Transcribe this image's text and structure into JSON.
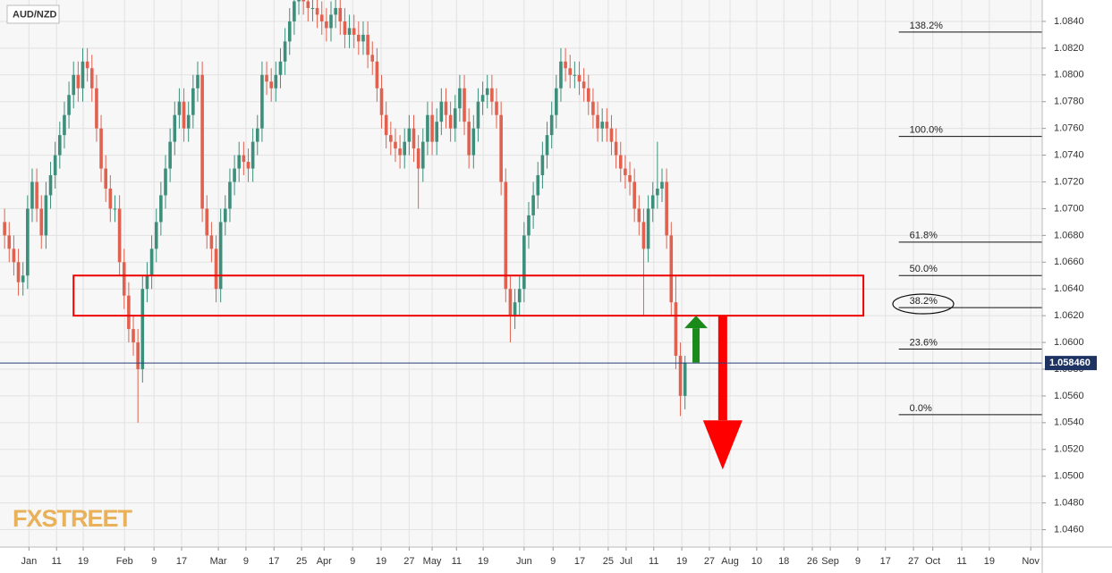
{
  "chart_data": {
    "type": "candlestick",
    "title": "AUD/NZD",
    "logo": "FXSTREET",
    "up_color": "#3d8f7b",
    "down_color": "#e0614f",
    "grid": true,
    "ylim": [
      1.0447,
      1.0856
    ],
    "xlim": [
      -1,
      225.7
    ],
    "yticks": [
      {
        "value": 1.046,
        "label": "1.0460"
      },
      {
        "value": 1.048,
        "label": "1.0480"
      },
      {
        "value": 1.05,
        "label": "1.0500"
      },
      {
        "value": 1.052,
        "label": "1.0520"
      },
      {
        "value": 1.054,
        "label": "1.0540"
      },
      {
        "value": 1.056,
        "label": "1.0560"
      },
      {
        "value": 1.058,
        "label": "1.0580"
      },
      {
        "value": 1.06,
        "label": "1.0600"
      },
      {
        "value": 1.062,
        "label": "1.0620"
      },
      {
        "value": 1.064,
        "label": "1.0640"
      },
      {
        "value": 1.066,
        "label": "1.0660"
      },
      {
        "value": 1.068,
        "label": "1.0680"
      },
      {
        "value": 1.07,
        "label": "1.0700"
      },
      {
        "value": 1.072,
        "label": "1.0720"
      },
      {
        "value": 1.074,
        "label": "1.0740"
      },
      {
        "value": 1.076,
        "label": "1.0760"
      },
      {
        "value": 1.078,
        "label": "1.0780"
      },
      {
        "value": 1.08,
        "label": "1.0800"
      },
      {
        "value": 1.082,
        "label": "1.0820"
      },
      {
        "value": 1.084,
        "label": "1.0840"
      }
    ],
    "xticks": [
      {
        "value": 5.3,
        "label": "Jan"
      },
      {
        "value": 11.3,
        "label": "11"
      },
      {
        "value": 17.1,
        "label": "19"
      },
      {
        "value": 26.1,
        "label": "Feb"
      },
      {
        "value": 32.5,
        "label": "9"
      },
      {
        "value": 38.5,
        "label": "17"
      },
      {
        "value": 46.5,
        "label": "Mar"
      },
      {
        "value": 52.5,
        "label": "9"
      },
      {
        "value": 58.6,
        "label": "17"
      },
      {
        "value": 64.6,
        "label": "25"
      },
      {
        "value": 69.5,
        "label": "Apr"
      },
      {
        "value": 75.7,
        "label": "9"
      },
      {
        "value": 81.9,
        "label": "19"
      },
      {
        "value": 88,
        "label": "27"
      },
      {
        "value": 93,
        "label": "May"
      },
      {
        "value": 98.3,
        "label": "11"
      },
      {
        "value": 104.1,
        "label": "19"
      },
      {
        "value": 113,
        "label": "Jun"
      },
      {
        "value": 119.3,
        "label": "9"
      },
      {
        "value": 125.1,
        "label": "17"
      },
      {
        "value": 131.3,
        "label": "25"
      },
      {
        "value": 135.2,
        "label": "Jul"
      },
      {
        "value": 141.2,
        "label": "11"
      },
      {
        "value": 147.3,
        "label": "19"
      },
      {
        "value": 153.3,
        "label": "27"
      },
      {
        "value": 157.8,
        "label": "Aug"
      },
      {
        "value": 163.6,
        "label": "10"
      },
      {
        "value": 169.5,
        "label": "18"
      },
      {
        "value": 175.7,
        "label": "26"
      },
      {
        "value": 179.6,
        "label": "Sep"
      },
      {
        "value": 185.6,
        "label": "9"
      },
      {
        "value": 191.6,
        "label": "17"
      },
      {
        "value": 197.7,
        "label": "27"
      },
      {
        "value": 201.9,
        "label": "Oct"
      },
      {
        "value": 208.2,
        "label": "11"
      },
      {
        "value": 214.2,
        "label": "19"
      },
      {
        "value": 223.2,
        "label": "Nov"
      }
    ],
    "last_price": {
      "value": 1.05846,
      "label": "1.058460"
    },
    "fib_levels": [
      {
        "name": "138.2%",
        "price": 1.0832
      },
      {
        "name": "100.0%",
        "price": 1.0754
      },
      {
        "name": "61.8%",
        "price": 1.0675
      },
      {
        "name": "50.0%",
        "price": 1.065
      },
      {
        "name": "38.2%",
        "price": 1.0626
      },
      {
        "name": "23.6%",
        "price": 1.0595
      },
      {
        "name": "0.0%",
        "price": 1.0546
      }
    ],
    "fib_xlim": [
      194.5,
      225.7
    ],
    "zone": {
      "xlim": [
        15,
        186.8
      ],
      "ylim": [
        1.062,
        1.065
      ]
    },
    "arrows": [
      {
        "x": 150.4,
        "from": 1.0585,
        "to": 1.062,
        "color": "#1a8a1a"
      },
      {
        "x": 156.2,
        "from": 1.062,
        "to": 1.0505,
        "color": "#ff0000"
      }
    ],
    "ohlc": [
      [
        1.069,
        1.07,
        1.067,
        1.068
      ],
      [
        1.068,
        1.069,
        1.066,
        1.067
      ],
      [
        1.067,
        1.068,
        1.065,
        1.066
      ],
      [
        1.066,
        1.067,
        1.0635,
        1.0645
      ],
      [
        1.0645,
        1.066,
        1.0635,
        1.065
      ],
      [
        1.065,
        1.071,
        1.064,
        1.07
      ],
      [
        1.07,
        1.073,
        1.069,
        1.072
      ],
      [
        1.072,
        1.073,
        1.069,
        1.07
      ],
      [
        1.07,
        1.071,
        1.067,
        1.068
      ],
      [
        1.068,
        1.072,
        1.067,
        1.071
      ],
      [
        1.071,
        1.0735,
        1.07,
        1.0725
      ],
      [
        1.0725,
        1.075,
        1.0715,
        1.074
      ],
      [
        1.074,
        1.0765,
        1.073,
        1.0755
      ],
      [
        1.0755,
        1.078,
        1.0745,
        1.077
      ],
      [
        1.077,
        1.0795,
        1.076,
        1.0785
      ],
      [
        1.0785,
        1.081,
        1.0775,
        1.08
      ],
      [
        1.08,
        1.081,
        1.078,
        1.079
      ],
      [
        1.079,
        1.082,
        1.078,
        1.081
      ],
      [
        1.081,
        1.082,
        1.0795,
        1.0805
      ],
      [
        1.0805,
        1.0815,
        1.078,
        1.079
      ],
      [
        1.079,
        1.08,
        1.075,
        1.076
      ],
      [
        1.076,
        1.077,
        1.072,
        1.073
      ],
      [
        1.073,
        1.074,
        1.0705,
        1.0715
      ],
      [
        1.0715,
        1.0725,
        1.069,
        1.07
      ],
      [
        1.07,
        1.071,
        1.069,
        1.07
      ],
      [
        1.07,
        1.071,
        1.065,
        1.066
      ],
      [
        1.066,
        1.067,
        1.0625,
        1.0635
      ],
      [
        1.0635,
        1.0645,
        1.06,
        1.061
      ],
      [
        1.061,
        1.062,
        1.059,
        1.06
      ],
      [
        1.06,
        1.061,
        1.054,
        1.058
      ],
      [
        1.058,
        1.065,
        1.057,
        1.064
      ],
      [
        1.064,
        1.066,
        1.063,
        1.065
      ],
      [
        1.065,
        1.068,
        1.064,
        1.067
      ],
      [
        1.067,
        1.07,
        1.066,
        1.069
      ],
      [
        1.069,
        1.072,
        1.068,
        1.071
      ],
      [
        1.071,
        1.074,
        1.07,
        1.073
      ],
      [
        1.073,
        1.076,
        1.072,
        1.075
      ],
      [
        1.075,
        1.078,
        1.074,
        1.077
      ],
      [
        1.077,
        1.079,
        1.076,
        1.078
      ],
      [
        1.078,
        1.079,
        1.075,
        1.076
      ],
      [
        1.076,
        1.078,
        1.075,
        1.077
      ],
      [
        1.077,
        1.08,
        1.076,
        1.079
      ],
      [
        1.079,
        1.081,
        1.078,
        1.08
      ],
      [
        1.08,
        1.081,
        1.069,
        1.07
      ],
      [
        1.07,
        1.071,
        1.067,
        1.068
      ],
      [
        1.068,
        1.069,
        1.066,
        1.067
      ],
      [
        1.067,
        1.068,
        1.063,
        1.064
      ],
      [
        1.064,
        1.07,
        1.063,
        1.069
      ],
      [
        1.069,
        1.071,
        1.068,
        1.07
      ],
      [
        1.07,
        1.073,
        1.069,
        1.072
      ],
      [
        1.072,
        1.074,
        1.071,
        1.073
      ],
      [
        1.073,
        1.075,
        1.072,
        1.074
      ],
      [
        1.074,
        1.075,
        1.0725,
        1.0735
      ],
      [
        1.0735,
        1.0745,
        1.072,
        1.073
      ],
      [
        1.073,
        1.076,
        1.072,
        1.075
      ],
      [
        1.075,
        1.077,
        1.074,
        1.076
      ],
      [
        1.076,
        1.081,
        1.075,
        1.08
      ],
      [
        1.08,
        1.081,
        1.0785,
        1.0795
      ],
      [
        1.0795,
        1.0805,
        1.078,
        1.079
      ],
      [
        1.079,
        1.081,
        1.078,
        1.08
      ],
      [
        1.08,
        1.082,
        1.079,
        1.081
      ],
      [
        1.081,
        1.0835,
        1.08,
        1.0825
      ],
      [
        1.0825,
        1.085,
        1.0815,
        1.084
      ],
      [
        1.084,
        1.0865,
        1.083,
        1.0855
      ],
      [
        1.0855,
        1.087,
        1.0845,
        1.086
      ],
      [
        1.086,
        1.087,
        1.0845,
        1.0855
      ],
      [
        1.0855,
        1.0865,
        1.084,
        1.085
      ],
      [
        1.085,
        1.086,
        1.084,
        1.085
      ],
      [
        1.085,
        1.086,
        1.0835,
        1.0845
      ],
      [
        1.0845,
        1.0855,
        1.083,
        1.084
      ],
      [
        1.084,
        1.085,
        1.0825,
        1.0835
      ],
      [
        1.0835,
        1.0855,
        1.0825,
        1.0845
      ],
      [
        1.0845,
        1.086,
        1.0835,
        1.085
      ],
      [
        1.085,
        1.086,
        1.083,
        1.084
      ],
      [
        1.084,
        1.085,
        1.082,
        1.083
      ],
      [
        1.083,
        1.0845,
        1.082,
        1.0835
      ],
      [
        1.0835,
        1.0845,
        1.082,
        1.083
      ],
      [
        1.083,
        1.084,
        1.0815,
        1.0825
      ],
      [
        1.0825,
        1.084,
        1.0815,
        1.083
      ],
      [
        1.083,
        1.084,
        1.0805,
        1.0815
      ],
      [
        1.0815,
        1.0825,
        1.08,
        1.081
      ],
      [
        1.081,
        1.082,
        1.078,
        1.079
      ],
      [
        1.079,
        1.08,
        1.076,
        1.077
      ],
      [
        1.077,
        1.078,
        1.0745,
        1.0755
      ],
      [
        1.0755,
        1.0765,
        1.074,
        1.075
      ],
      [
        1.075,
        1.076,
        1.0735,
        1.0745
      ],
      [
        1.0745,
        1.0755,
        1.073,
        1.074
      ],
      [
        1.074,
        1.076,
        1.073,
        1.075
      ],
      [
        1.075,
        1.077,
        1.074,
        1.076
      ],
      [
        1.076,
        1.077,
        1.0735,
        1.0745
      ],
      [
        1.0745,
        1.0755,
        1.07,
        1.073
      ],
      [
        1.073,
        1.076,
        1.072,
        1.075
      ],
      [
        1.075,
        1.078,
        1.074,
        1.077
      ],
      [
        1.077,
        1.078,
        1.074,
        1.075
      ],
      [
        1.075,
        1.0775,
        1.074,
        1.0765
      ],
      [
        1.0765,
        1.079,
        1.0755,
        1.078
      ],
      [
        1.078,
        1.079,
        1.076,
        1.077
      ],
      [
        1.077,
        1.078,
        1.075,
        1.076
      ],
      [
        1.076,
        1.0785,
        1.075,
        1.0775
      ],
      [
        1.0775,
        1.08,
        1.0765,
        1.079
      ],
      [
        1.079,
        1.08,
        1.0755,
        1.0765
      ],
      [
        1.0765,
        1.0775,
        1.073,
        1.074
      ],
      [
        1.074,
        1.077,
        1.073,
        1.076
      ],
      [
        1.076,
        1.079,
        1.075,
        1.078
      ],
      [
        1.078,
        1.0795,
        1.077,
        1.0785
      ],
      [
        1.0785,
        1.08,
        1.0775,
        1.079
      ],
      [
        1.079,
        1.08,
        1.077,
        1.078
      ],
      [
        1.078,
        1.079,
        1.076,
        1.077
      ],
      [
        1.077,
        1.078,
        1.071,
        1.072
      ],
      [
        1.072,
        1.073,
        1.063,
        1.064
      ],
      [
        1.064,
        1.065,
        1.06,
        1.062
      ],
      [
        1.062,
        1.064,
        1.061,
        1.063
      ],
      [
        1.063,
        1.065,
        1.062,
        1.064
      ],
      [
        1.064,
        1.069,
        1.063,
        1.068
      ],
      [
        1.068,
        1.0705,
        1.067,
        1.0695
      ],
      [
        1.0695,
        1.072,
        1.0685,
        1.071
      ],
      [
        1.071,
        1.0735,
        1.07,
        1.0725
      ],
      [
        1.0725,
        1.075,
        1.0715,
        1.074
      ],
      [
        1.074,
        1.0765,
        1.073,
        1.0755
      ],
      [
        1.0755,
        1.078,
        1.0745,
        1.077
      ],
      [
        1.077,
        1.08,
        1.076,
        1.079
      ],
      [
        1.079,
        1.082,
        1.078,
        1.081
      ],
      [
        1.081,
        1.082,
        1.0795,
        1.0805
      ],
      [
        1.0805,
        1.0815,
        1.079,
        1.08
      ],
      [
        1.08,
        1.081,
        1.079,
        1.08
      ],
      [
        1.08,
        1.081,
        1.0785,
        1.0795
      ],
      [
        1.0795,
        1.0805,
        1.078,
        1.079
      ],
      [
        1.079,
        1.08,
        1.077,
        1.078
      ],
      [
        1.078,
        1.079,
        1.076,
        1.077
      ],
      [
        1.077,
        1.078,
        1.075,
        1.076
      ],
      [
        1.076,
        1.0775,
        1.075,
        1.0765
      ],
      [
        1.0765,
        1.0775,
        1.075,
        1.076
      ],
      [
        1.076,
        1.077,
        1.074,
        1.075
      ],
      [
        1.075,
        1.076,
        1.073,
        1.074
      ],
      [
        1.074,
        1.075,
        1.072,
        1.073
      ],
      [
        1.073,
        1.074,
        1.0715,
        1.0725
      ],
      [
        1.0725,
        1.0735,
        1.071,
        1.072
      ],
      [
        1.072,
        1.073,
        1.069,
        1.07
      ],
      [
        1.07,
        1.071,
        1.068,
        1.069
      ],
      [
        1.069,
        1.07,
        1.062,
        1.067
      ],
      [
        1.067,
        1.071,
        1.066,
        1.07
      ],
      [
        1.07,
        1.072,
        1.069,
        1.071
      ],
      [
        1.071,
        1.075,
        1.07,
        1.0715
      ],
      [
        1.0715,
        1.073,
        1.0705,
        1.072
      ],
      [
        1.072,
        1.073,
        1.067,
        1.068
      ],
      [
        1.068,
        1.069,
        1.062,
        1.063
      ],
      [
        1.063,
        1.065,
        1.058,
        1.059
      ],
      [
        1.059,
        1.06,
        1.0545,
        1.056
      ],
      [
        1.056,
        1.059,
        1.055,
        1.0585
      ]
    ]
  }
}
